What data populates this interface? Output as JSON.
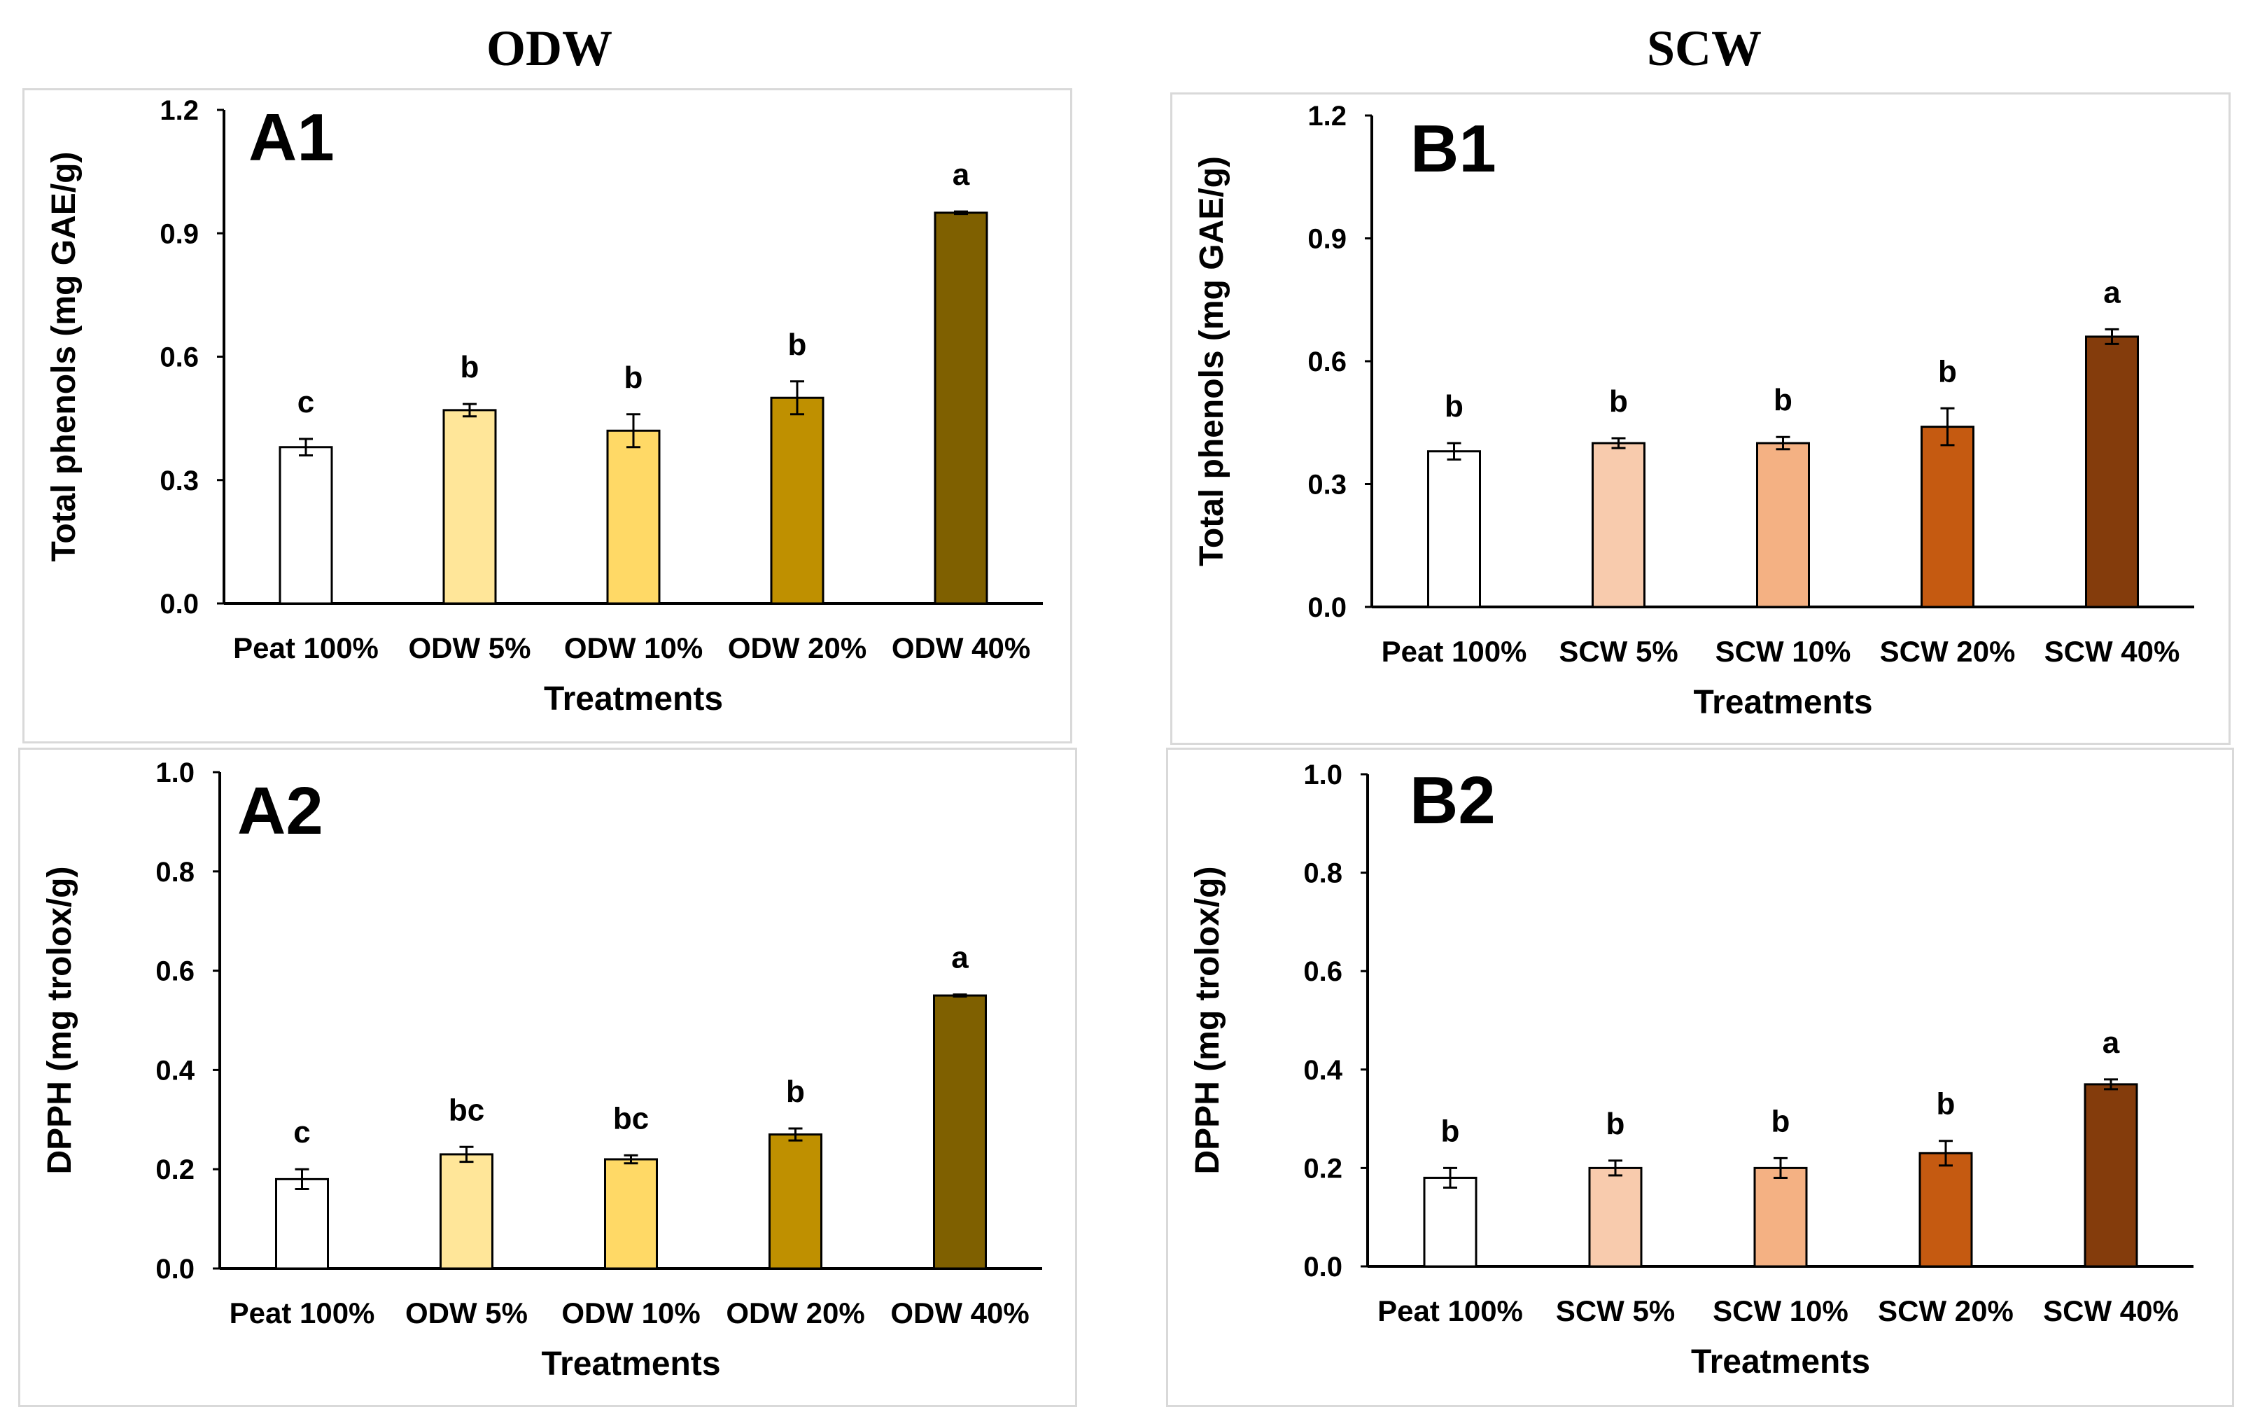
{
  "column_titles": {
    "left": "ODW",
    "right": "SCW"
  },
  "chart_data": [
    {
      "panel": "A1",
      "type": "bar",
      "categories": [
        "Peat 100%",
        "ODW 5%",
        "ODW 10%",
        "ODW 20%",
        "ODW 40%"
      ],
      "values": [
        0.38,
        0.47,
        0.42,
        0.5,
        0.95
      ],
      "errors": [
        0.02,
        0.015,
        0.04,
        0.04,
        0.003
      ],
      "letters": [
        "c",
        "b",
        "b",
        "b",
        "a"
      ],
      "colors": [
        "#ffffff",
        "#ffe699",
        "#ffd966",
        "#bf9000",
        "#7f6000"
      ],
      "ylabel": "Total phenols (mg GAE/g)",
      "xlabel": "Treatments",
      "ylim": [
        0,
        1.2
      ],
      "yticks": [
        "0.0",
        "0.3",
        "0.6",
        "0.9",
        "1.2"
      ],
      "ytick_values": [
        0,
        0.3,
        0.6,
        0.9,
        1.2
      ]
    },
    {
      "panel": "B1",
      "type": "bar",
      "categories": [
        "Peat 100%",
        "SCW 5%",
        "SCW 10%",
        "SCW 20%",
        "SCW 40%"
      ],
      "values": [
        0.38,
        0.4,
        0.4,
        0.44,
        0.66
      ],
      "errors": [
        0.02,
        0.012,
        0.015,
        0.045,
        0.018
      ],
      "letters": [
        "b",
        "b",
        "b",
        "b",
        "a"
      ],
      "colors": [
        "#ffffff",
        "#f8cbad",
        "#f4b183",
        "#c55a11",
        "#843c0c"
      ],
      "ylabel": "Total phenols (mg GAE/g)",
      "xlabel": "Treatments",
      "ylim": [
        0,
        1.2
      ],
      "yticks": [
        "0.0",
        "0.3",
        "0.6",
        "0.9",
        "1.2"
      ],
      "ytick_values": [
        0,
        0.3,
        0.6,
        0.9,
        1.2
      ]
    },
    {
      "panel": "A2",
      "type": "bar",
      "categories": [
        "Peat 100%",
        "ODW 5%",
        "ODW 10%",
        "ODW 20%",
        "ODW 40%"
      ],
      "values": [
        0.18,
        0.23,
        0.22,
        0.27,
        0.55
      ],
      "errors": [
        0.02,
        0.015,
        0.008,
        0.012,
        0.002
      ],
      "letters": [
        "c",
        "bc",
        "bc",
        "b",
        "a"
      ],
      "colors": [
        "#ffffff",
        "#ffe699",
        "#ffd966",
        "#bf9000",
        "#7f6000"
      ],
      "ylabel": "DPPH (mg trolox/g)",
      "xlabel": "Treatments",
      "ylim": [
        0,
        1.0
      ],
      "yticks": [
        "0.0",
        "0.2",
        "0.4",
        "0.6",
        "0.8",
        "1.0"
      ],
      "ytick_values": [
        0,
        0.2,
        0.4,
        0.6,
        0.8,
        1.0
      ]
    },
    {
      "panel": "B2",
      "type": "bar",
      "categories": [
        "Peat 100%",
        "SCW 5%",
        "SCW 10%",
        "SCW 20%",
        "SCW 40%"
      ],
      "values": [
        0.18,
        0.2,
        0.2,
        0.23,
        0.37
      ],
      "errors": [
        0.02,
        0.015,
        0.02,
        0.025,
        0.01
      ],
      "letters": [
        "b",
        "b",
        "b",
        "b",
        "a"
      ],
      "colors": [
        "#ffffff",
        "#f8cbad",
        "#f4b183",
        "#c55a11",
        "#843c0c"
      ],
      "ylabel": "DPPH (mg trolox/g)",
      "xlabel": "Treatments",
      "ylim": [
        0,
        1.0
      ],
      "yticks": [
        "0.0",
        "0.2",
        "0.4",
        "0.6",
        "0.8",
        "1.0"
      ],
      "ytick_values": [
        0,
        0.2,
        0.4,
        0.6,
        0.8,
        1.0
      ]
    }
  ]
}
